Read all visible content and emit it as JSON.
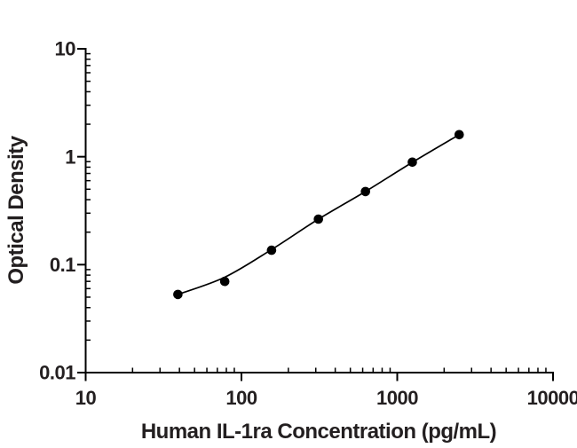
{
  "figure": {
    "background": "#ffffff",
    "ink_color": "#000000",
    "text_color": "#231f20"
  },
  "chart_data": {
    "type": "scatter",
    "title": "",
    "xlabel": "Human IL-1ra Concentration (pg/mL)",
    "ylabel": "Optical Density",
    "x_scale": "log",
    "y_scale": "log",
    "xlim": [
      10,
      10000
    ],
    "ylim": [
      0.01,
      10
    ],
    "grid": false,
    "legend": null,
    "x_ticks": [
      {
        "value": 10,
        "label": "10"
      },
      {
        "value": 100,
        "label": "100"
      },
      {
        "value": 1000,
        "label": "1000"
      },
      {
        "value": 10000,
        "label": "10000"
      }
    ],
    "y_ticks": [
      {
        "value": 10,
        "label": "10"
      },
      {
        "value": 1,
        "label": "1"
      },
      {
        "value": 0.1,
        "label": "0.1"
      },
      {
        "value": 0.01,
        "label": "0.01"
      }
    ],
    "minor_ticks_per_decade": true,
    "series": [
      {
        "name": "standard-curve",
        "marker": "filled-circle",
        "color": "#000000",
        "points": [
          {
            "x": 39.1,
            "y": 0.053
          },
          {
            "x": 78.1,
            "y": 0.07
          },
          {
            "x": 156,
            "y": 0.136
          },
          {
            "x": 312,
            "y": 0.264
          },
          {
            "x": 625,
            "y": 0.476
          },
          {
            "x": 1250,
            "y": 0.89
          },
          {
            "x": 2500,
            "y": 1.6
          }
        ],
        "fit_curve": [
          {
            "x": 39.1,
            "y": 0.053
          },
          {
            "x": 78.1,
            "y": 0.0765
          },
          {
            "x": 156,
            "y": 0.138
          },
          {
            "x": 312,
            "y": 0.264
          },
          {
            "x": 625,
            "y": 0.476
          },
          {
            "x": 1250,
            "y": 0.887
          },
          {
            "x": 2500,
            "y": 1.6
          }
        ]
      }
    ]
  }
}
